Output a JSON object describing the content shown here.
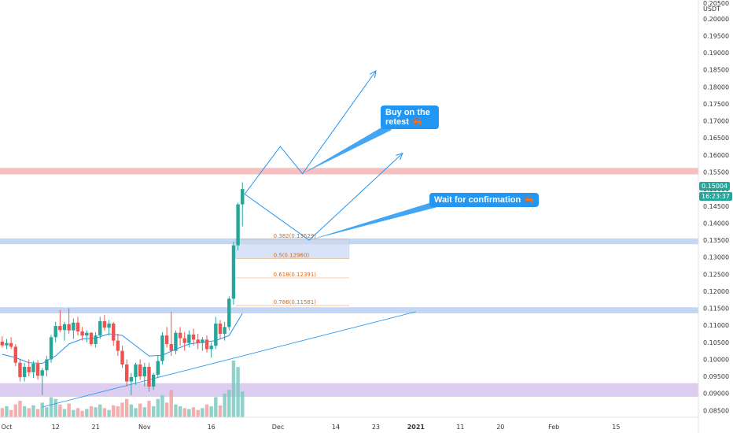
{
  "chart_data": {
    "type": "candlestick",
    "currency": "USDT",
    "y_ticks": [
      "0.20000",
      "0.19500",
      "0.19000",
      "0.18500",
      "0.18000",
      "0.17500",
      "0.17000",
      "0.16500",
      "0.16000",
      "0.15500",
      "0.15000",
      "0.14500",
      "0.14000",
      "0.13500",
      "0.13000",
      "0.12500",
      "0.12000",
      "0.11500",
      "0.11000",
      "0.10500",
      "0.10000",
      "0.09500",
      "0.09000",
      "0.08500"
    ],
    "y_tick_values": [
      0.2,
      0.195,
      0.19,
      0.185,
      0.18,
      0.175,
      0.17,
      0.165,
      0.16,
      0.155,
      0.15,
      0.145,
      0.14,
      0.135,
      0.13,
      0.125,
      0.12,
      0.115,
      0.11,
      0.105,
      0.1,
      0.095,
      0.09,
      0.085
    ],
    "top_partial_tick": "0.20500",
    "ylim": [
      0.083,
      0.2055
    ],
    "x_ticks": [
      {
        "label": "Oct",
        "day": 1
      },
      {
        "label": "12",
        "day": 12
      },
      {
        "label": "21",
        "day": 21
      },
      {
        "label": "Nov",
        "day": 32
      },
      {
        "label": "16",
        "day": 47
      },
      {
        "label": "Dec",
        "day": 62
      },
      {
        "label": "14",
        "day": 75
      },
      {
        "label": "23",
        "day": 84
      },
      {
        "label": "2021",
        "day": 93
      },
      {
        "label": "11",
        "day": 103
      },
      {
        "label": "20",
        "day": 112
      },
      {
        "label": "Feb",
        "day": 124
      },
      {
        "label": "15",
        "day": 138
      }
    ],
    "xlim": [
      -0.5,
      156.5
    ],
    "last_price": "0.15004",
    "countdown": "16:23:37",
    "candles": [
      {
        "d": 0,
        "o": 0.1052,
        "h": 0.1068,
        "l": 0.1035,
        "c": 0.1041
      },
      {
        "d": 1,
        "o": 0.1041,
        "h": 0.106,
        "l": 0.103,
        "c": 0.1048
      },
      {
        "d": 2,
        "o": 0.1048,
        "h": 0.1065,
        "l": 0.103,
        "c": 0.1037
      },
      {
        "d": 3,
        "o": 0.1037,
        "h": 0.1045,
        "l": 0.098,
        "c": 0.099
      },
      {
        "d": 4,
        "o": 0.099,
        "h": 0.1,
        "l": 0.0935,
        "c": 0.0948
      },
      {
        "d": 5,
        "o": 0.0948,
        "h": 0.099,
        "l": 0.0935,
        "c": 0.0978
      },
      {
        "d": 6,
        "o": 0.0978,
        "h": 0.1,
        "l": 0.095,
        "c": 0.0962
      },
      {
        "d": 7,
        "o": 0.0962,
        "h": 0.0995,
        "l": 0.0945,
        "c": 0.0987
      },
      {
        "d": 8,
        "o": 0.0987,
        "h": 0.0998,
        "l": 0.094,
        "c": 0.0952
      },
      {
        "d": 9,
        "o": 0.0952,
        "h": 0.0975,
        "l": 0.0895,
        "c": 0.0968
      },
      {
        "d": 10,
        "o": 0.0968,
        "h": 0.101,
        "l": 0.095,
        "c": 0.1
      },
      {
        "d": 11,
        "o": 0.1,
        "h": 0.1072,
        "l": 0.099,
        "c": 0.1065
      },
      {
        "d": 12,
        "o": 0.1065,
        "h": 0.111,
        "l": 0.105,
        "c": 0.1098
      },
      {
        "d": 13,
        "o": 0.1098,
        "h": 0.1145,
        "l": 0.108,
        "c": 0.1086
      },
      {
        "d": 14,
        "o": 0.1086,
        "h": 0.111,
        "l": 0.1055,
        "c": 0.1103
      },
      {
        "d": 15,
        "o": 0.1103,
        "h": 0.115,
        "l": 0.1075,
        "c": 0.1085
      },
      {
        "d": 16,
        "o": 0.1085,
        "h": 0.112,
        "l": 0.106,
        "c": 0.1108
      },
      {
        "d": 17,
        "o": 0.1108,
        "h": 0.1125,
        "l": 0.107,
        "c": 0.1082
      },
      {
        "d": 18,
        "o": 0.1082,
        "h": 0.1095,
        "l": 0.1055,
        "c": 0.107
      },
      {
        "d": 19,
        "o": 0.107,
        "h": 0.1085,
        "l": 0.105,
        "c": 0.1078
      },
      {
        "d": 20,
        "o": 0.1078,
        "h": 0.108,
        "l": 0.104,
        "c": 0.1045
      },
      {
        "d": 21,
        "o": 0.1045,
        "h": 0.108,
        "l": 0.1035,
        "c": 0.107
      },
      {
        "d": 22,
        "o": 0.107,
        "h": 0.1125,
        "l": 0.106,
        "c": 0.1112
      },
      {
        "d": 23,
        "o": 0.1112,
        "h": 0.113,
        "l": 0.1085,
        "c": 0.1093
      },
      {
        "d": 24,
        "o": 0.1093,
        "h": 0.1115,
        "l": 0.107,
        "c": 0.1105
      },
      {
        "d": 25,
        "o": 0.1105,
        "h": 0.111,
        "l": 0.104,
        "c": 0.1055
      },
      {
        "d": 26,
        "o": 0.1055,
        "h": 0.1075,
        "l": 0.101,
        "c": 0.1025
      },
      {
        "d": 27,
        "o": 0.1025,
        "h": 0.104,
        "l": 0.0975,
        "c": 0.0985
      },
      {
        "d": 28,
        "o": 0.0985,
        "h": 0.1,
        "l": 0.092,
        "c": 0.0935
      },
      {
        "d": 29,
        "o": 0.0935,
        "h": 0.096,
        "l": 0.0895,
        "c": 0.0948
      },
      {
        "d": 30,
        "o": 0.0948,
        "h": 0.099,
        "l": 0.0925,
        "c": 0.0985
      },
      {
        "d": 31,
        "o": 0.0985,
        "h": 0.1,
        "l": 0.094,
        "c": 0.095
      },
      {
        "d": 32,
        "o": 0.095,
        "h": 0.099,
        "l": 0.092,
        "c": 0.0978
      },
      {
        "d": 33,
        "o": 0.0978,
        "h": 0.099,
        "l": 0.0905,
        "c": 0.092
      },
      {
        "d": 34,
        "o": 0.092,
        "h": 0.096,
        "l": 0.091,
        "c": 0.0955
      },
      {
        "d": 35,
        "o": 0.0955,
        "h": 0.101,
        "l": 0.0945,
        "c": 0.0995
      },
      {
        "d": 36,
        "o": 0.0995,
        "h": 0.108,
        "l": 0.0985,
        "c": 0.107
      },
      {
        "d": 37,
        "o": 0.107,
        "h": 0.1095,
        "l": 0.1035,
        "c": 0.1045
      },
      {
        "d": 38,
        "o": 0.1045,
        "h": 0.114,
        "l": 0.101,
        "c": 0.1025
      },
      {
        "d": 39,
        "o": 0.1025,
        "h": 0.1085,
        "l": 0.1015,
        "c": 0.1078
      },
      {
        "d": 40,
        "o": 0.1078,
        "h": 0.1095,
        "l": 0.104,
        "c": 0.1062
      },
      {
        "d": 41,
        "o": 0.1062,
        "h": 0.108,
        "l": 0.1025,
        "c": 0.1048
      },
      {
        "d": 42,
        "o": 0.1048,
        "h": 0.1085,
        "l": 0.1035,
        "c": 0.1073
      },
      {
        "d": 43,
        "o": 0.1073,
        "h": 0.109,
        "l": 0.104,
        "c": 0.1058
      },
      {
        "d": 44,
        "o": 0.1058,
        "h": 0.1075,
        "l": 0.103,
        "c": 0.1048
      },
      {
        "d": 45,
        "o": 0.1048,
        "h": 0.1065,
        "l": 0.1025,
        "c": 0.1058
      },
      {
        "d": 46,
        "o": 0.1058,
        "h": 0.107,
        "l": 0.102,
        "c": 0.103
      },
      {
        "d": 47,
        "o": 0.103,
        "h": 0.105,
        "l": 0.1005,
        "c": 0.104
      },
      {
        "d": 48,
        "o": 0.104,
        "h": 0.1125,
        "l": 0.103,
        "c": 0.1105
      },
      {
        "d": 49,
        "o": 0.1105,
        "h": 0.1115,
        "l": 0.106,
        "c": 0.1075
      },
      {
        "d": 50,
        "o": 0.1075,
        "h": 0.111,
        "l": 0.1055,
        "c": 0.1095
      },
      {
        "d": 51,
        "o": 0.1095,
        "h": 0.1185,
        "l": 0.1085,
        "c": 0.1178
      },
      {
        "d": 52,
        "o": 0.1178,
        "h": 0.1345,
        "l": 0.116,
        "c": 0.1335
      },
      {
        "d": 53,
        "o": 0.1335,
        "h": 0.146,
        "l": 0.132,
        "c": 0.1455
      },
      {
        "d": 54,
        "o": 0.1455,
        "h": 0.152,
        "l": 0.139,
        "c": 0.15
      }
    ],
    "ma_line": [
      [
        0,
        0.1015
      ],
      [
        3,
        0.1005
      ],
      [
        6,
        0.099
      ],
      [
        9,
        0.0988
      ],
      [
        12,
        0.101
      ],
      [
        15,
        0.1045
      ],
      [
        18,
        0.106
      ],
      [
        21,
        0.1062
      ],
      [
        24,
        0.1075
      ],
      [
        27,
        0.107
      ],
      [
        30,
        0.104
      ],
      [
        33,
        0.101
      ],
      [
        36,
        0.1012
      ],
      [
        39,
        0.103
      ],
      [
        42,
        0.1045
      ],
      [
        45,
        0.105
      ],
      [
        48,
        0.1055
      ],
      [
        51,
        0.107
      ],
      [
        54,
        0.1135
      ]
    ],
    "volume": [
      {
        "d": 0,
        "v": 10,
        "up": false
      },
      {
        "d": 1,
        "v": 12,
        "up": true
      },
      {
        "d": 2,
        "v": 8,
        "up": false
      },
      {
        "d": 3,
        "v": 14,
        "up": false
      },
      {
        "d": 4,
        "v": 18,
        "up": false
      },
      {
        "d": 5,
        "v": 12,
        "up": true
      },
      {
        "d": 6,
        "v": 10,
        "up": false
      },
      {
        "d": 7,
        "v": 13,
        "up": true
      },
      {
        "d": 8,
        "v": 9,
        "up": false
      },
      {
        "d": 9,
        "v": 16,
        "up": true
      },
      {
        "d": 10,
        "v": 11,
        "up": true
      },
      {
        "d": 11,
        "v": 22,
        "up": true
      },
      {
        "d": 12,
        "v": 20,
        "up": true
      },
      {
        "d": 13,
        "v": 14,
        "up": false
      },
      {
        "d": 14,
        "v": 9,
        "up": true
      },
      {
        "d": 15,
        "v": 15,
        "up": false
      },
      {
        "d": 16,
        "v": 8,
        "up": true
      },
      {
        "d": 17,
        "v": 10,
        "up": false
      },
      {
        "d": 18,
        "v": 7,
        "up": false
      },
      {
        "d": 19,
        "v": 9,
        "up": true
      },
      {
        "d": 20,
        "v": 12,
        "up": false
      },
      {
        "d": 21,
        "v": 11,
        "up": true
      },
      {
        "d": 22,
        "v": 14,
        "up": true
      },
      {
        "d": 23,
        "v": 10,
        "up": false
      },
      {
        "d": 24,
        "v": 8,
        "up": true
      },
      {
        "d": 25,
        "v": 13,
        "up": false
      },
      {
        "d": 26,
        "v": 12,
        "up": false
      },
      {
        "d": 27,
        "v": 16,
        "up": false
      },
      {
        "d": 28,
        "v": 20,
        "up": false
      },
      {
        "d": 29,
        "v": 14,
        "up": true
      },
      {
        "d": 30,
        "v": 10,
        "up": true
      },
      {
        "d": 31,
        "v": 15,
        "up": false
      },
      {
        "d": 32,
        "v": 11,
        "up": true
      },
      {
        "d": 33,
        "v": 18,
        "up": false
      },
      {
        "d": 34,
        "v": 12,
        "up": true
      },
      {
        "d": 35,
        "v": 20,
        "up": true
      },
      {
        "d": 36,
        "v": 24,
        "up": true
      },
      {
        "d": 37,
        "v": 16,
        "up": false
      },
      {
        "d": 38,
        "v": 30,
        "up": false
      },
      {
        "d": 39,
        "v": 14,
        "up": true
      },
      {
        "d": 40,
        "v": 12,
        "up": true
      },
      {
        "d": 41,
        "v": 10,
        "up": false
      },
      {
        "d": 42,
        "v": 9,
        "up": true
      },
      {
        "d": 43,
        "v": 11,
        "up": false
      },
      {
        "d": 44,
        "v": 8,
        "up": false
      },
      {
        "d": 45,
        "v": 10,
        "up": true
      },
      {
        "d": 46,
        "v": 14,
        "up": false
      },
      {
        "d": 47,
        "v": 12,
        "up": true
      },
      {
        "d": 48,
        "v": 22,
        "up": true
      },
      {
        "d": 49,
        "v": 13,
        "up": false
      },
      {
        "d": 50,
        "v": 26,
        "up": true
      },
      {
        "d": 51,
        "v": 30,
        "up": true
      },
      {
        "d": 52,
        "v": 62,
        "up": true
      },
      {
        "d": 53,
        "v": 55,
        "up": true
      },
      {
        "d": 54,
        "v": 28,
        "up": true
      }
    ],
    "zones": [
      {
        "kind": "resistance",
        "lo": 0.1543,
        "hi": 0.1562,
        "color": "#f5b5b5"
      },
      {
        "kind": "support",
        "lo": 0.1338,
        "hi": 0.1355,
        "color": "#b9cff2"
      },
      {
        "kind": "support",
        "lo": 0.1135,
        "hi": 0.1153,
        "color": "#b9cff2"
      },
      {
        "kind": "range",
        "lo": 0.089,
        "hi": 0.093,
        "color": "#d7c6ef"
      }
    ],
    "fib_box": {
      "d0": 52.5,
      "d1": 78,
      "lo": 0.1296,
      "hi": 0.1353
    },
    "fib_levels": [
      {
        "label": "0.382(0.13529)",
        "value": 0.13529,
        "d": 53
      },
      {
        "label": "0.5(0.12960)",
        "value": 0.1296,
        "d": 53
      },
      {
        "label": "0.618(0.12391)",
        "value": 0.12391,
        "d": 53
      },
      {
        "label": "0.786(0.11581)",
        "value": 0.11581,
        "d": 53
      }
    ],
    "trendline": [
      [
        9,
        0.086
      ],
      [
        93,
        0.114
      ]
    ],
    "paths": [
      [
        [
          54.5,
          0.1485
        ],
        [
          62.5,
          0.1625
        ],
        [
          67.5,
          0.1545
        ],
        [
          84,
          0.1847
        ]
      ],
      [
        [
          54.5,
          0.1485
        ],
        [
          69,
          0.135
        ],
        [
          90,
          0.1605
        ]
      ]
    ],
    "annotations": [
      {
        "text": "Buy on the retest 🦐",
        "anchor_d": 67.5,
        "anchor_v": 0.1545
      },
      {
        "text": "Wait for confirmation 🦐",
        "anchor_d": 69,
        "anchor_v": 0.135
      }
    ]
  },
  "labels": {
    "currency": "USDT",
    "top_partial": "0.20500",
    "last_price": "0.15004",
    "countdown": "16:23:37",
    "callout1": "Buy on the retest 🦐",
    "callout2": "Wait for confirmation 🦐"
  }
}
